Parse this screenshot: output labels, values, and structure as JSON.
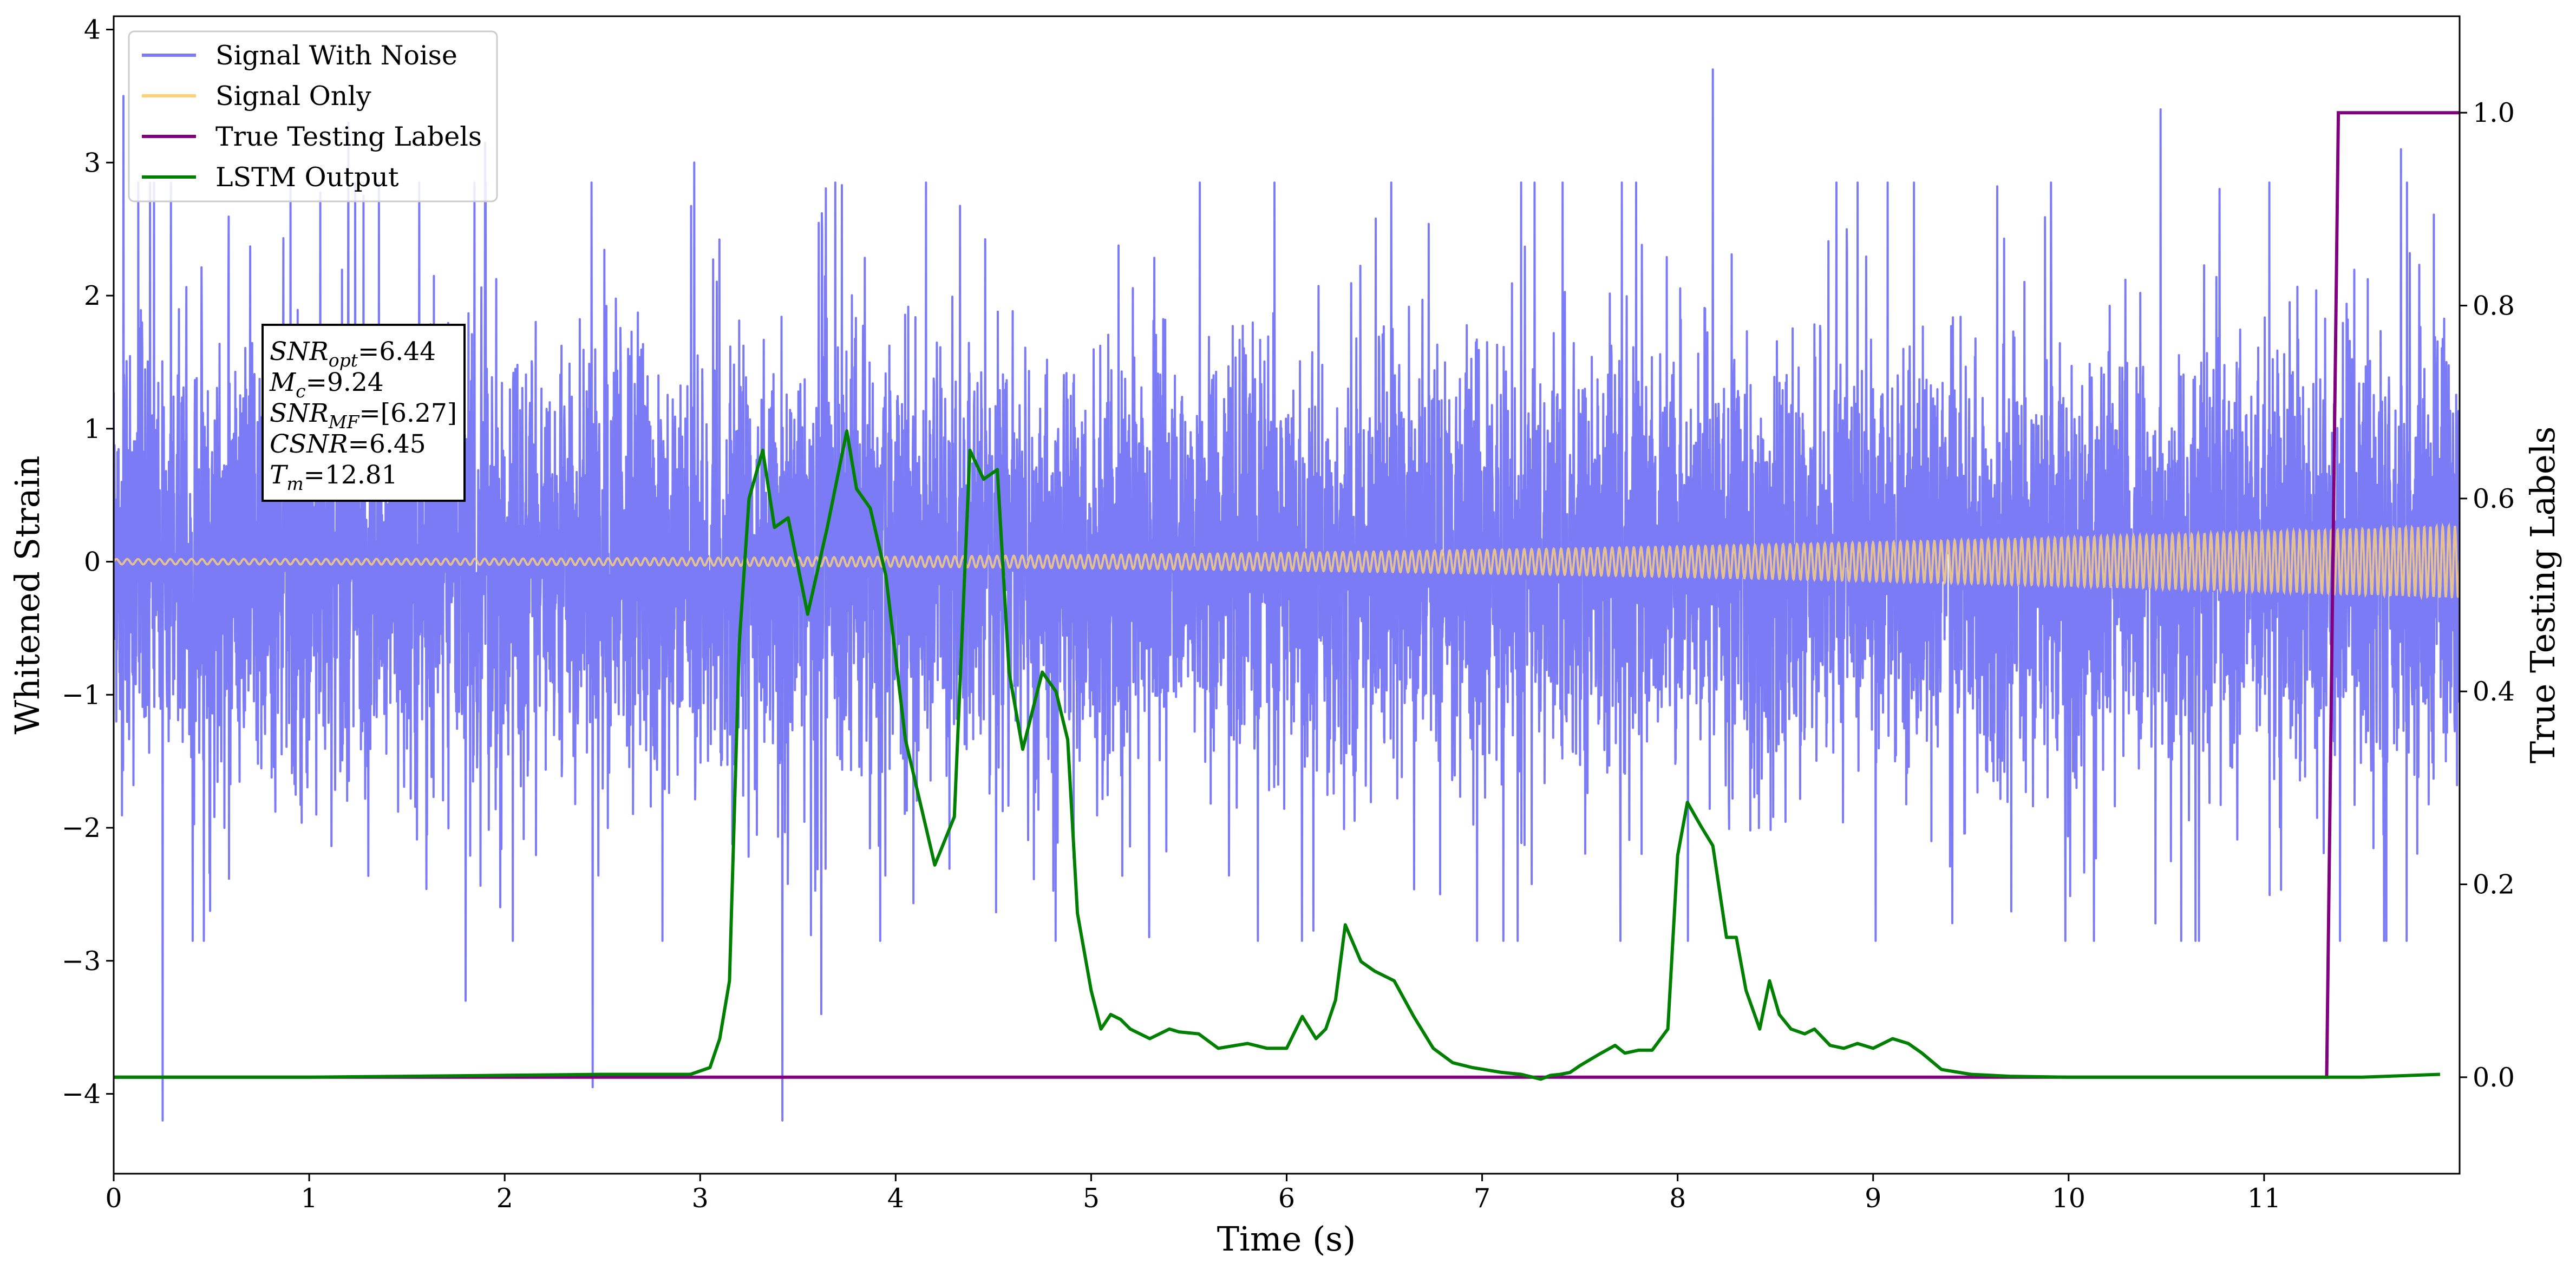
{
  "chart_data": {
    "type": "line",
    "xlabel": "Time (s)",
    "ylabel_left": "Whitened Strain",
    "ylabel_right": "True Testing Labels",
    "xlim": [
      0,
      12
    ],
    "ylim_left": [
      -4.6,
      4.1
    ],
    "ylim_right": [
      -0.1,
      1.1
    ],
    "x_ticks": [
      0,
      1,
      2,
      3,
      4,
      5,
      6,
      7,
      8,
      9,
      10,
      11
    ],
    "y_ticks_left": [
      -4,
      -3,
      -2,
      -1,
      0,
      1,
      2,
      3,
      4
    ],
    "y_ticks_right": [
      0.0,
      0.2,
      0.4,
      0.6,
      0.8,
      1.0
    ],
    "x_tick_labels": [
      "0",
      "1",
      "2",
      "3",
      "4",
      "5",
      "6",
      "7",
      "8",
      "9",
      "10",
      "11"
    ],
    "y_tick_labels_left": [
      "−4",
      "−3",
      "−2",
      "−1",
      "0",
      "1",
      "2",
      "3",
      "4"
    ],
    "y_tick_labels_right": [
      "0.0",
      "0.2",
      "0.4",
      "0.6",
      "0.8",
      "1.0"
    ],
    "grid": false,
    "legend_position": "top-left",
    "legend": [
      {
        "label": "Signal With Noise",
        "color": "#7b7bf6"
      },
      {
        "label": "Signal Only",
        "color": "#ffd27a"
      },
      {
        "label": "True Testing Labels",
        "color": "#800080"
      },
      {
        "label": "LSTM Output",
        "color": "#008000"
      }
    ],
    "annotation": {
      "lines": [
        {
          "var": "SNR",
          "sub": "opt",
          "value": "=6.44"
        },
        {
          "var": "M",
          "sub": "c",
          "value": "=9.24"
        },
        {
          "var": "SNR",
          "sub": "MF",
          "value": "=[6.27]"
        },
        {
          "var": "CSNR",
          "sub": "",
          "value": "=6.45"
        },
        {
          "var": "T",
          "sub": "m",
          "value": "=12.81"
        }
      ]
    },
    "series": [
      {
        "name": "Signal With Noise",
        "axis": "left",
        "color": "#7b7bf6",
        "kind": "noise",
        "x_range": [
          0,
          12
        ],
        "typical_amplitude": 1.0,
        "peaks": [
          {
            "x": 0.05,
            "y": 3.5
          },
          {
            "x": 0.25,
            "y": -4.2
          },
          {
            "x": 1.2,
            "y": 3.3
          },
          {
            "x": 1.8,
            "y": -3.3
          },
          {
            "x": 1.9,
            "y": 3.15
          },
          {
            "x": 2.45,
            "y": -3.95
          },
          {
            "x": 2.97,
            "y": 3.0
          },
          {
            "x": 3.42,
            "y": -4.2
          },
          {
            "x": 3.62,
            "y": -3.4
          },
          {
            "x": 8.18,
            "y": 3.7
          },
          {
            "x": 10.47,
            "y": 3.4
          },
          {
            "x": 11.7,
            "y": 3.1
          }
        ]
      },
      {
        "name": "Signal Only",
        "axis": "left",
        "color": "#ffd27a",
        "kind": "chirp",
        "x_range": [
          0,
          12
        ],
        "amplitude_start": 0.02,
        "amplitude_end": 0.27
      },
      {
        "name": "True Testing Labels",
        "axis": "right",
        "color": "#800080",
        "x": [
          0,
          11.32,
          11.38,
          12.0
        ],
        "y": [
          0.0,
          0.0,
          1.0,
          1.0
        ]
      },
      {
        "name": "LSTM Output",
        "axis": "right",
        "color": "#008000",
        "x": [
          0,
          1.0,
          2.0,
          2.5,
          2.95,
          3.05,
          3.1,
          3.15,
          3.2,
          3.25,
          3.32,
          3.38,
          3.45,
          3.55,
          3.65,
          3.75,
          3.8,
          3.87,
          3.95,
          4.05,
          4.2,
          4.3,
          4.38,
          4.45,
          4.52,
          4.58,
          4.65,
          4.75,
          4.82,
          4.88,
          4.93,
          5.0,
          5.05,
          5.1,
          5.15,
          5.2,
          5.3,
          5.4,
          5.45,
          5.55,
          5.65,
          5.8,
          5.9,
          6.0,
          6.08,
          6.15,
          6.2,
          6.25,
          6.3,
          6.38,
          6.45,
          6.55,
          6.65,
          6.75,
          6.85,
          6.95,
          7.1,
          7.2,
          7.3,
          7.35,
          7.4,
          7.45,
          7.5,
          7.6,
          7.68,
          7.73,
          7.8,
          7.87,
          7.95,
          8.0,
          8.05,
          8.12,
          8.18,
          8.25,
          8.3,
          8.35,
          8.42,
          8.47,
          8.52,
          8.58,
          8.65,
          8.7,
          8.78,
          8.85,
          8.92,
          9.0,
          9.05,
          9.1,
          9.18,
          9.25,
          9.35,
          9.5,
          9.7,
          10.0,
          10.5,
          11.5,
          11.9
        ],
        "y": [
          0.0,
          0.0,
          0.002,
          0.003,
          0.003,
          0.01,
          0.04,
          0.1,
          0.45,
          0.6,
          0.65,
          0.57,
          0.58,
          0.48,
          0.57,
          0.67,
          0.61,
          0.59,
          0.52,
          0.35,
          0.22,
          0.27,
          0.65,
          0.62,
          0.63,
          0.42,
          0.34,
          0.42,
          0.4,
          0.35,
          0.17,
          0.09,
          0.05,
          0.065,
          0.06,
          0.05,
          0.04,
          0.05,
          0.047,
          0.045,
          0.03,
          0.035,
          0.03,
          0.03,
          0.063,
          0.04,
          0.05,
          0.08,
          0.158,
          0.12,
          0.11,
          0.1,
          0.063,
          0.03,
          0.015,
          0.01,
          0.005,
          0.003,
          -0.002,
          0.002,
          0.003,
          0.005,
          0.012,
          0.024,
          0.033,
          0.025,
          0.028,
          0.028,
          0.05,
          0.23,
          0.285,
          0.26,
          0.24,
          0.145,
          0.145,
          0.09,
          0.05,
          0.1,
          0.065,
          0.05,
          0.045,
          0.05,
          0.033,
          0.03,
          0.035,
          0.03,
          0.035,
          0.04,
          0.035,
          0.025,
          0.008,
          0.003,
          0.001,
          0.0,
          0.0,
          0.0,
          0.003
        ]
      }
    ]
  }
}
